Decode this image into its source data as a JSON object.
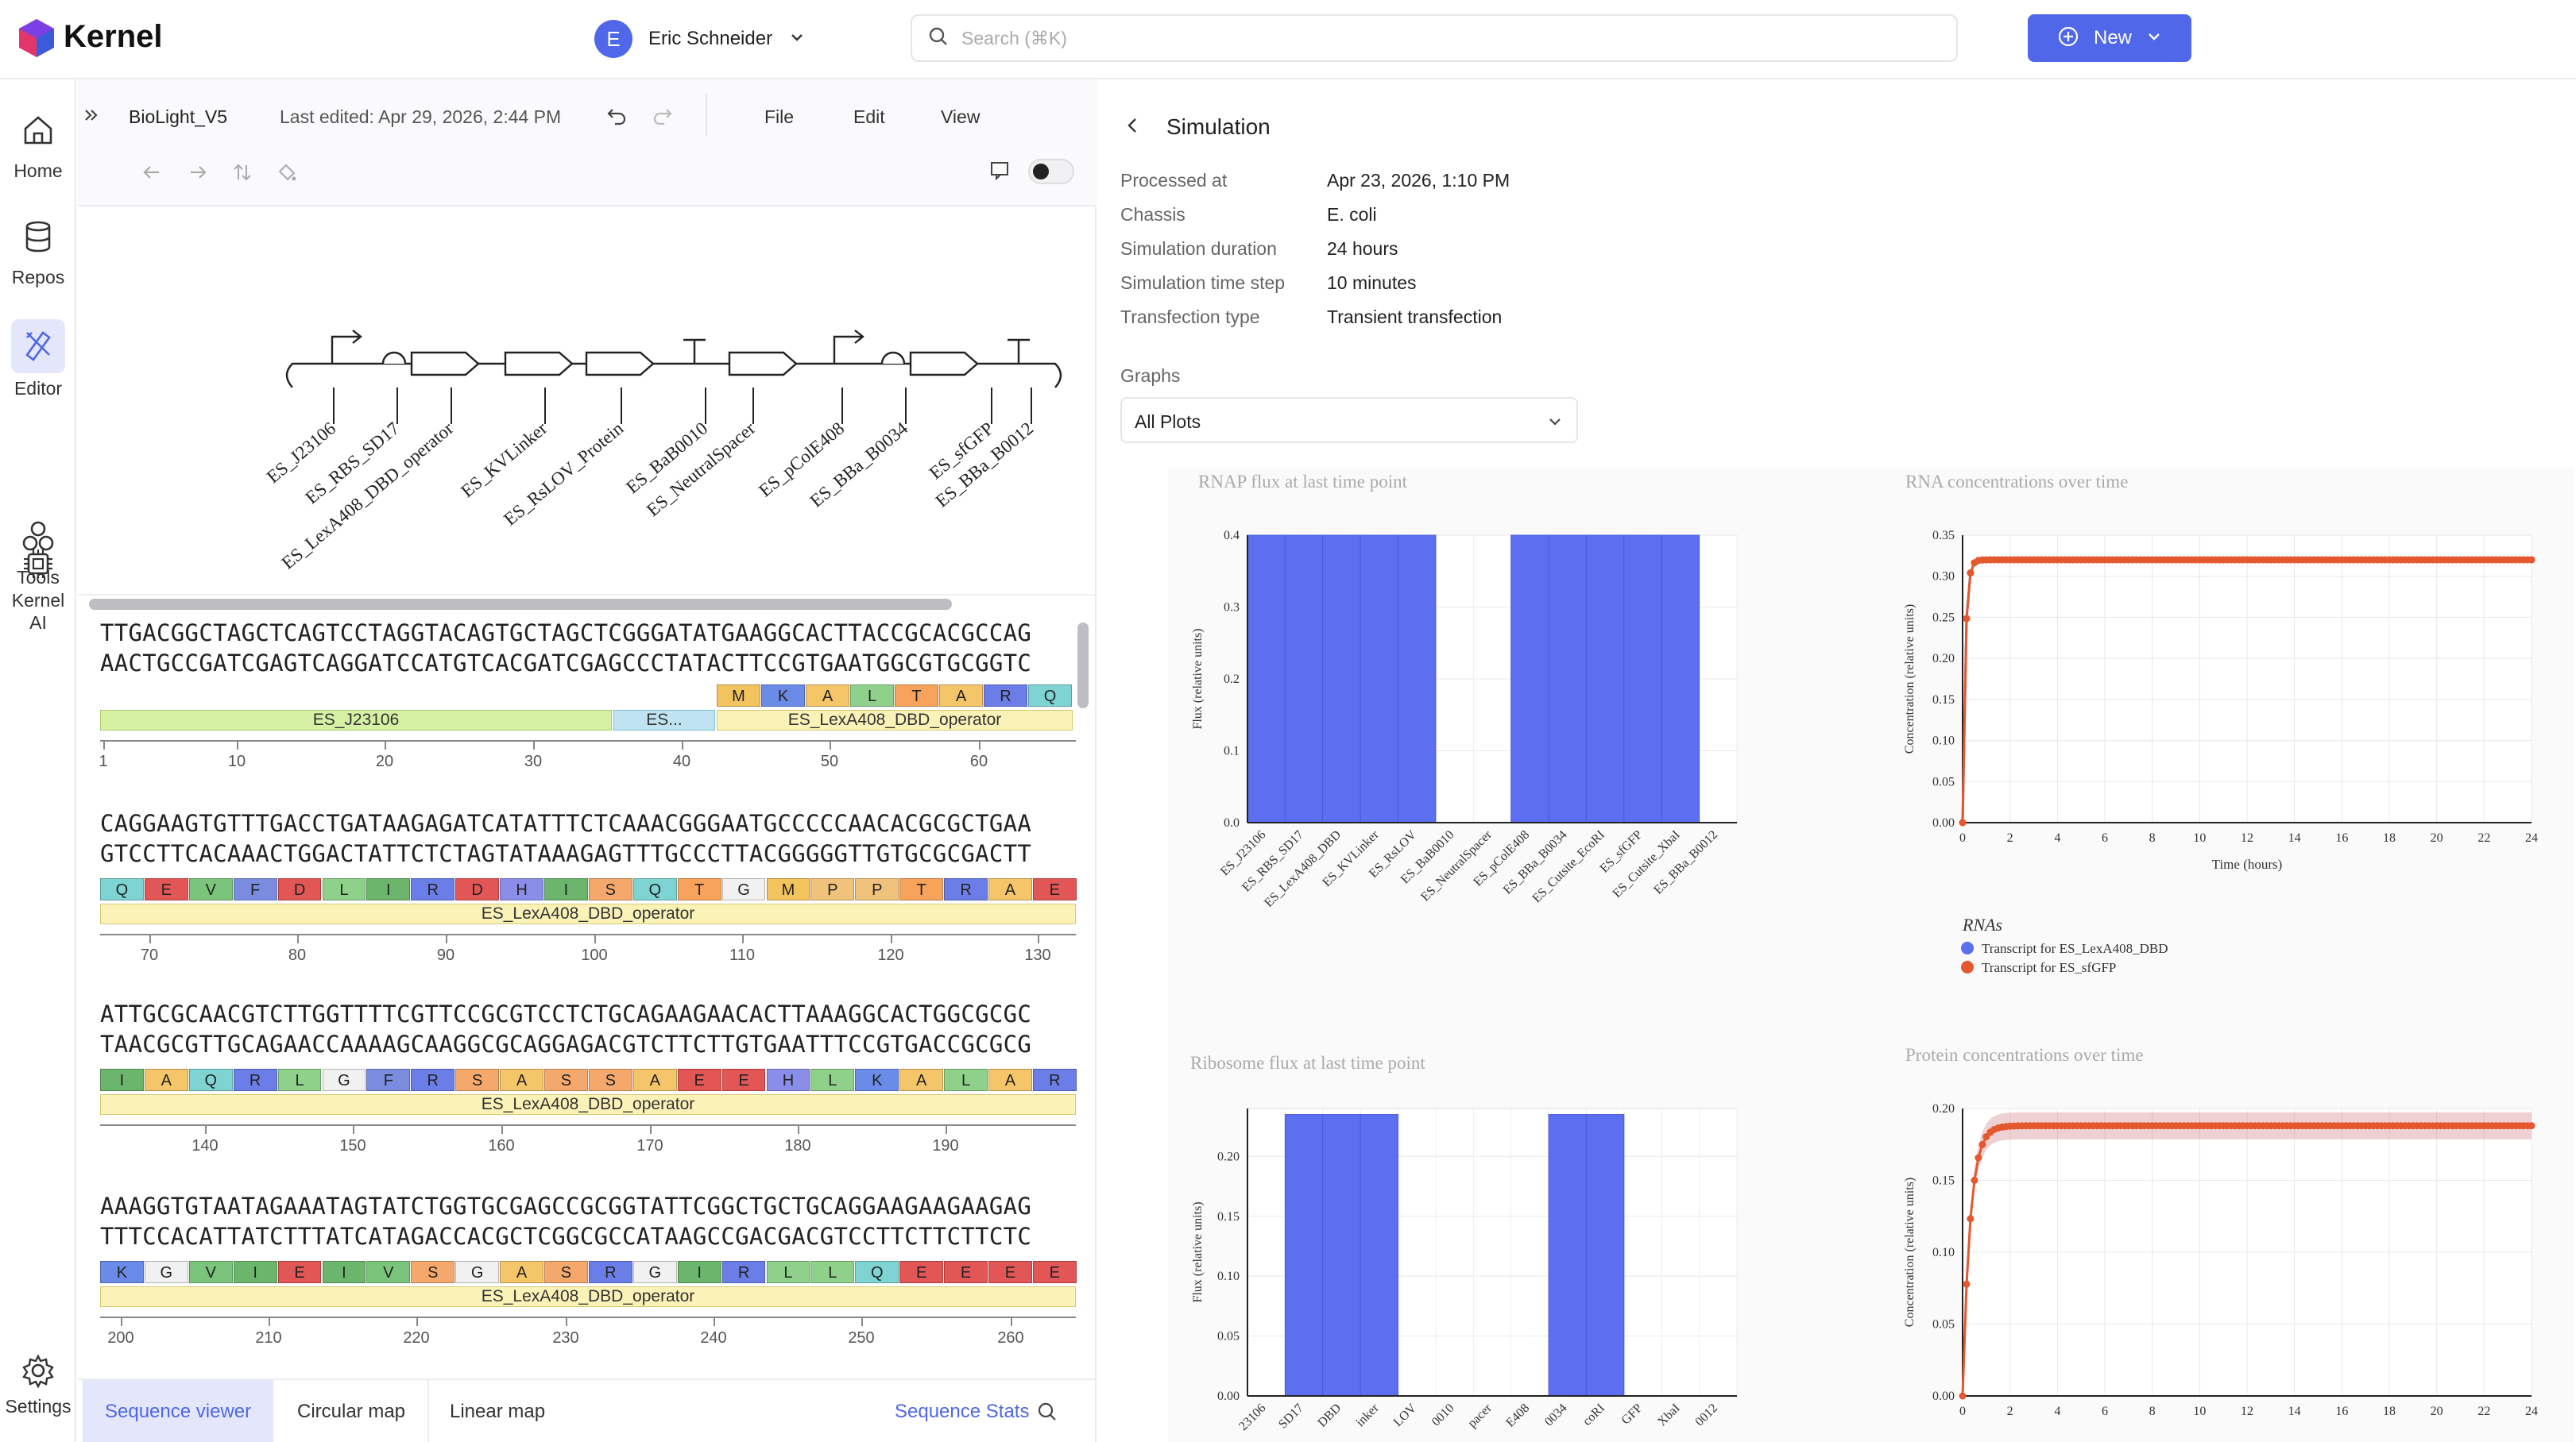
{
  "app": {
    "name": "Kernel"
  },
  "user": {
    "initial": "E",
    "name": "Eric Schneider"
  },
  "search": {
    "placeholder": "Search (⌘K)"
  },
  "new_button": {
    "label": "New"
  },
  "nav": {
    "home": "Home",
    "repos": "Repos",
    "editor": "Editor",
    "tools": "Tools",
    "kernel_ai_line1": "Kernel",
    "kernel_ai_line2": "AI",
    "settings": "Settings"
  },
  "editor": {
    "doc_name": "BioLight_V5",
    "last_edited": "Last edited: Apr 29, 2026, 2:44 PM",
    "menu": {
      "file": "File",
      "edit": "Edit",
      "view": "View"
    }
  },
  "map_parts": [
    "ES_J23106",
    "ES_RBS_SD17",
    "ES_LexA408_DBD_operator",
    "ES_KVLinker",
    "ES_RsLOV_Protein",
    "ES_BaB0010",
    "ES_NeutralSpacer",
    "ES_pColE408",
    "ES_BBa_B0034",
    "ES_sfGFP",
    "ES_BBa_B0012"
  ],
  "sequence_rows": [
    {
      "top": "TTGACGGCTAGCTCAGTCCTAGGTACAGTGCTAGCTCGGGATATGAAGGCACTTACCGCACGCCAG",
      "bottom": "AACTGCCGATCGAGTCAGGATCCATGTCACGATCGAGCCCTATACTTCCGTGAATGGCGTGCGGTC",
      "aa": [
        "M",
        "K",
        "A",
        "L",
        "T",
        "A",
        "R",
        "Q"
      ],
      "features": [
        "ES_J23106",
        "ES...",
        "ES_LexA408_DBD_operator"
      ],
      "ticks": [
        "1",
        "10",
        "20",
        "30",
        "40",
        "50",
        "60"
      ]
    },
    {
      "top": "CAGGAAGTGTTTGACCTGATAAGAGATCATATTTCTCAAACGGGAATGCCCCCAACACGCGCTGAA",
      "bottom": "GTCCTTCACAAACTGGACTATTCTCTAGTATAAAGAGTTTGCCCTTACGGGGGTTGTGCGCGACTT",
      "aa": [
        "Q",
        "E",
        "V",
        "F",
        "D",
        "L",
        "I",
        "R",
        "D",
        "H",
        "I",
        "S",
        "Q",
        "T",
        "G",
        "M",
        "P",
        "P",
        "T",
        "R",
        "A",
        "E"
      ],
      "features": [
        "ES_LexA408_DBD_operator"
      ],
      "ticks": [
        "70",
        "80",
        "90",
        "100",
        "110",
        "120",
        "130"
      ]
    },
    {
      "top": "ATTGCGCAACGTCTTGGTTTTCGTTCCGCGTCCTCTGCAGAAGAACACTTAAAGGCACTGGCGCGC",
      "bottom": "TAACGCGTTGCAGAACCAAAAGCAAGGCGCAGGAGACGTCTTCTTGTGAATTTCCGTGACCGCGCG",
      "aa": [
        "I",
        "A",
        "Q",
        "R",
        "L",
        "G",
        "F",
        "R",
        "S",
        "A",
        "S",
        "S",
        "A",
        "E",
        "E",
        "H",
        "L",
        "K",
        "A",
        "L",
        "A",
        "R"
      ],
      "features": [
        "ES_LexA408_DBD_operator"
      ],
      "ticks": [
        "140",
        "150",
        "160",
        "170",
        "180",
        "190"
      ]
    },
    {
      "top": "AAAGGTGTAATAGAAATAGTATCTGGTGCGAGCCGCGGTATTCGGCTGCTGCAGGAAGAAGAAGAG",
      "bottom": "TTTCCACATTATCTTTATCATAGACCACGCTCGGCGCCATAAGCCGACGACGTCCTTCTTCTTCTC",
      "aa": [
        "K",
        "G",
        "V",
        "I",
        "E",
        "I",
        "V",
        "S",
        "G",
        "A",
        "S",
        "R",
        "G",
        "I",
        "R",
        "L",
        "L",
        "Q",
        "E",
        "E",
        "E",
        "E"
      ],
      "features": [
        "ES_LexA408_DBD_operator"
      ],
      "ticks": [
        "200",
        "210",
        "220",
        "230",
        "240",
        "250",
        "260"
      ]
    }
  ],
  "bottom_tabs": {
    "sequence_viewer": "Sequence viewer",
    "circular_map": "Circular map",
    "linear_map": "Linear map",
    "sequence_stats": "Sequence Stats"
  },
  "simulation": {
    "title": "Simulation",
    "fields": [
      {
        "label": "Processed at",
        "value": "Apr 23, 2026, 1:10 PM"
      },
      {
        "label": "Chassis",
        "value": "E. coli"
      },
      {
        "label": "Simulation duration",
        "value": "24 hours"
      },
      {
        "label": "Simulation time step",
        "value": "10 minutes"
      },
      {
        "label": "Transfection type",
        "value": "Transient transfection"
      }
    ],
    "graphs_label": "Graphs",
    "graphs_select": "All Plots"
  },
  "colors": {
    "accent": "#4f67e8",
    "bar": "#5b6ff0",
    "line": "#e4582f"
  },
  "chart_data": [
    {
      "type": "bar",
      "title": "RNAP flux at last time point",
      "ylabel": "Flux (relative units)",
      "categories": [
        "ES_J23106",
        "ES_RBS_SD17",
        "ES_LexA408_DBD",
        "ES_KVLinker",
        "ES_RsLOV",
        "ES_BaB0010",
        "ES_NeutralSpacer",
        "ES_pColE408",
        "ES_BBa_B0034",
        "ES_Cutsite_EcoRI",
        "ES_sfGFP",
        "ES_Cutsite_XbaI",
        "ES_BBa_B0012"
      ],
      "values": [
        0.4,
        0.4,
        0.4,
        0.4,
        0.4,
        0,
        0,
        0.4,
        0.4,
        0.4,
        0.4,
        0.4,
        0
      ],
      "ylim": [
        0,
        0.4
      ],
      "yticks": [
        "0.0",
        "0.1",
        "0.2",
        "0.3",
        "0.4"
      ]
    },
    {
      "type": "line",
      "title": "RNA concentrations over time",
      "xlabel": "Time (hours)",
      "ylabel": "Concentration (relative units)",
      "ylim": [
        0,
        0.35
      ],
      "xlim": [
        0,
        24
      ],
      "yticks": [
        "0.00",
        "0.05",
        "0.10",
        "0.15",
        "0.20",
        "0.25",
        "0.30",
        "0.35"
      ],
      "xticks": [
        "0",
        "2",
        "4",
        "6",
        "8",
        "10",
        "12",
        "14",
        "16",
        "18",
        "20",
        "22",
        "24"
      ],
      "legend_title": "RNAs",
      "series": [
        {
          "name": "Transcript for ES_LexA408_DBD",
          "color": "#5b6ff0",
          "plateau": 0.32
        },
        {
          "name": "Transcript for ES_sfGFP",
          "color": "#e4582f",
          "plateau": 0.32
        }
      ]
    },
    {
      "type": "bar",
      "title": "Ribosome flux at last time point",
      "ylabel": "Flux (relative units)",
      "categories": [
        "ES_J23106",
        "ES_RBS_SD17",
        "ES_LexA408_DBD",
        "ES_KVLinker",
        "ES_RsLOV",
        "ES_BaB0010",
        "ES_NeutralSpacer",
        "ES_pColE408",
        "ES_BBa_B0034",
        "ES_Cutsite_EcoRI",
        "ES_sfGFP",
        "ES_Cutsite_XbaI",
        "ES_BBa_B0012"
      ],
      "tick_labels": [
        "23106",
        "SD17",
        "DBD",
        "inker",
        "LOV",
        "0010",
        "pacer",
        "E408",
        "0034",
        "coRI",
        "GFP",
        "XbaI",
        "0012"
      ],
      "values": [
        0,
        0.235,
        0.235,
        0.235,
        0,
        0,
        0,
        0,
        0.235,
        0.235,
        0,
        0,
        0
      ],
      "ylim": [
        0,
        0.24
      ],
      "yticks": [
        "0.00",
        "0.05",
        "0.10",
        "0.15",
        "0.20"
      ]
    },
    {
      "type": "line",
      "title": "Protein concentrations over time",
      "ylabel": "Concentration (relative units)",
      "ylim": [
        0,
        0.2
      ],
      "xlim": [
        0,
        24
      ],
      "yticks": [
        "0.00",
        "0.05",
        "0.10",
        "0.15",
        "0.20"
      ],
      "xticks": [
        "0",
        "2",
        "4",
        "6",
        "8",
        "10",
        "12",
        "14",
        "16",
        "18",
        "20",
        "22",
        "24"
      ],
      "series": [
        {
          "name": "",
          "color": "#e4582f",
          "plateau": 0.188
        }
      ]
    }
  ]
}
